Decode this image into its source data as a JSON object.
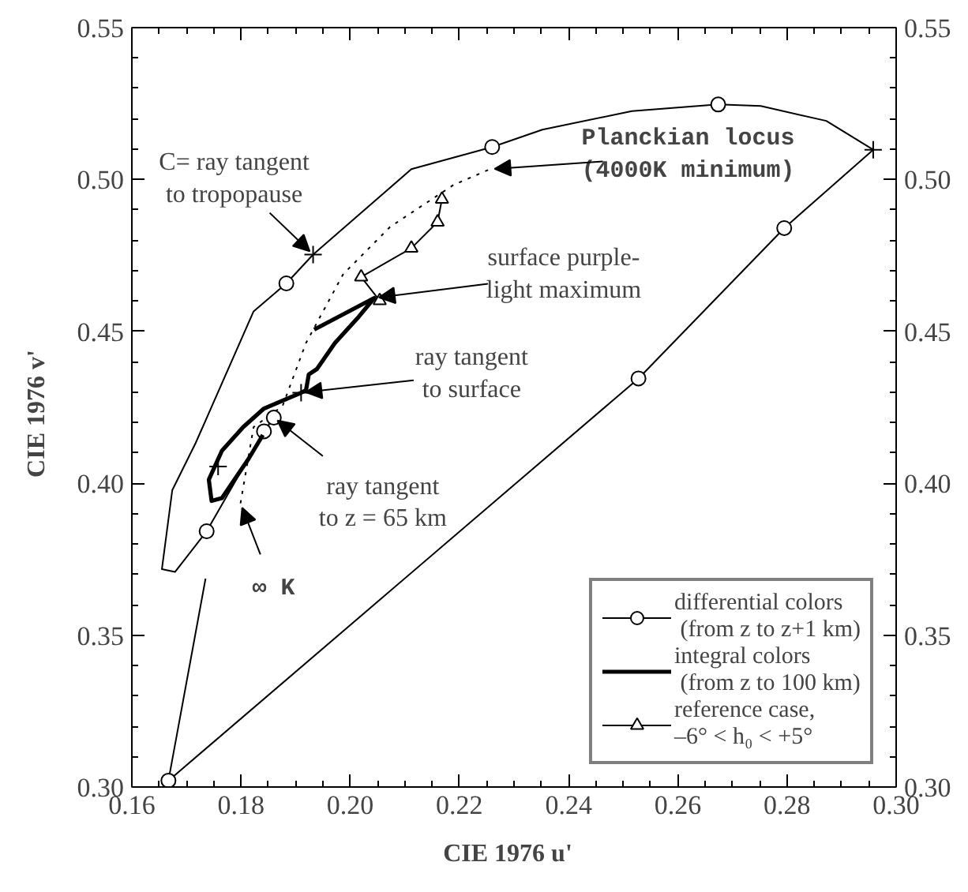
{
  "chart_data": {
    "type": "line",
    "xlabel": "CIE  1976  u'",
    "ylabel": "CIE  1976  v'",
    "xlim": [
      0.16,
      0.3
    ],
    "ylim": [
      0.3,
      0.55
    ],
    "y2lim": [
      0.3,
      0.55
    ],
    "xticks": [
      {
        "value": 0.16,
        "label": "0.16"
      },
      {
        "value": 0.18,
        "label": "0.18"
      },
      {
        "value": 0.2,
        "label": "0.20"
      },
      {
        "value": 0.22,
        "label": "0.22"
      },
      {
        "value": 0.24,
        "label": "0.24"
      },
      {
        "value": 0.26,
        "label": "0.26"
      },
      {
        "value": 0.28,
        "label": "0.28"
      },
      {
        "value": 0.3,
        "label": "0.30"
      }
    ],
    "yticks": [
      {
        "value": 0.3,
        "label": "0.30"
      },
      {
        "value": 0.35,
        "label": "0.35"
      },
      {
        "value": 0.4,
        "label": "0.40"
      },
      {
        "value": 0.45,
        "label": "0.45"
      },
      {
        "value": 0.5,
        "label": "0.50"
      },
      {
        "value": 0.55,
        "label": "0.55"
      }
    ],
    "y2ticks": [
      {
        "value": 0.3,
        "label": "0.30"
      },
      {
        "value": 0.35,
        "label": "0.35"
      },
      {
        "value": 0.4,
        "label": "0.40"
      },
      {
        "value": 0.45,
        "label": "0.45"
      },
      {
        "value": 0.5,
        "label": "0.50"
      },
      {
        "value": 0.55,
        "label": "0.55"
      }
    ],
    "grid": false,
    "legend": "bottom right",
    "series": [
      {
        "color": "#000000",
        "line_style": "dotted",
        "marker": "none",
        "x": [
          0.1799,
          0.1823,
          0.1876,
          0.1919,
          0.1987,
          0.2073,
          0.2189,
          0.2256
        ],
        "values": [
          0.3934,
          0.4185,
          0.4254,
          0.4462,
          0.4688,
          0.4844,
          0.4982,
          0.5034
        ]
      },
      {
        "type": "scatter",
        "color": "#000000",
        "marker": "cross",
        "x": [
          0.1932,
          0.2958,
          0.191,
          0.1758
        ],
        "values": [
          0.4753,
          0.5098,
          0.4298,
          0.4055
        ]
      },
      {
        "name": "differential colors\n (from z to z+1 km)",
        "color": "#000000",
        "line_style": "solid",
        "marker": "none",
        "x": [
          0.186,
          0.1842,
          0.1737,
          0.1679,
          0.1655,
          0.1674,
          0.1717,
          0.1823,
          0.1883,
          0.1932,
          0.2112,
          0.226,
          0.2352,
          0.2516,
          0.2674,
          0.2752,
          0.2872,
          0.2958,
          0.2795,
          0.2528,
          0.1667,
          0.1735
        ],
        "values": [
          0.4216,
          0.4171,
          0.3842,
          0.3708,
          0.3717,
          0.3977,
          0.4133,
          0.4566,
          0.4658,
          0.4753,
          0.5034,
          0.5107,
          0.5164,
          0.5225,
          0.5247,
          0.5242,
          0.5193,
          0.5098,
          0.484,
          0.4345,
          0.3021,
          0.3686
        ]
      },
      {
        "type": "scatter",
        "color": "#000000",
        "marker": "circle",
        "x": [
          0.186,
          0.1842,
          0.1737,
          0.1883,
          0.226,
          0.2674,
          0.2795,
          0.2528,
          0.1667
        ],
        "values": [
          0.4216,
          0.4171,
          0.3842,
          0.4658,
          0.5107,
          0.5247,
          0.484,
          0.4345,
          0.3021
        ]
      },
      {
        "name": "integral colors\n (from z to 100 km)",
        "color": "#000000",
        "line_style": "solid",
        "marker": "none",
        "x": [
          0.1934,
          0.2044,
          0.2016,
          0.1972,
          0.1939,
          0.1924,
          0.1919,
          0.191,
          0.1842,
          0.1804,
          0.1765,
          0.1741,
          0.1746,
          0.1765,
          0.1814,
          0.184
        ],
        "values": [
          0.4506,
          0.461,
          0.4549,
          0.4462,
          0.4376,
          0.4358,
          0.4306,
          0.4298,
          0.4246,
          0.4185,
          0.4107,
          0.4012,
          0.3942,
          0.3951,
          0.4081,
          0.4159
        ]
      },
      {
        "name": "reference case,\n–6° < h₀ < +5°",
        "color": "#000000",
        "line_style": "solid",
        "marker": "triangle",
        "x": [
          0.2168,
          0.216,
          0.2112,
          0.202,
          0.2054
        ],
        "values": [
          0.4935,
          0.486,
          0.4774,
          0.4679,
          0.4601
        ]
      }
    ],
    "annotations": [
      {
        "text": "C= ray tangent\nto tropopause",
        "x": 0.1932,
        "y": 0.4753
      },
      {
        "text": "Planckian  locus\n(4000K  minimum)",
        "x": 0.2256,
        "y": 0.5034
      },
      {
        "text": "surface purple-\nlight maximum",
        "x": 0.2044,
        "y": 0.461
      },
      {
        "text": "ray tangent\nto surface",
        "x": 0.191,
        "y": 0.4298
      },
      {
        "text": "ray tangent\nto z = 65 km",
        "x": 0.186,
        "y": 0.4216
      },
      {
        "text": "∞ K",
        "x": 0.1799,
        "y": 0.3934
      }
    ]
  }
}
